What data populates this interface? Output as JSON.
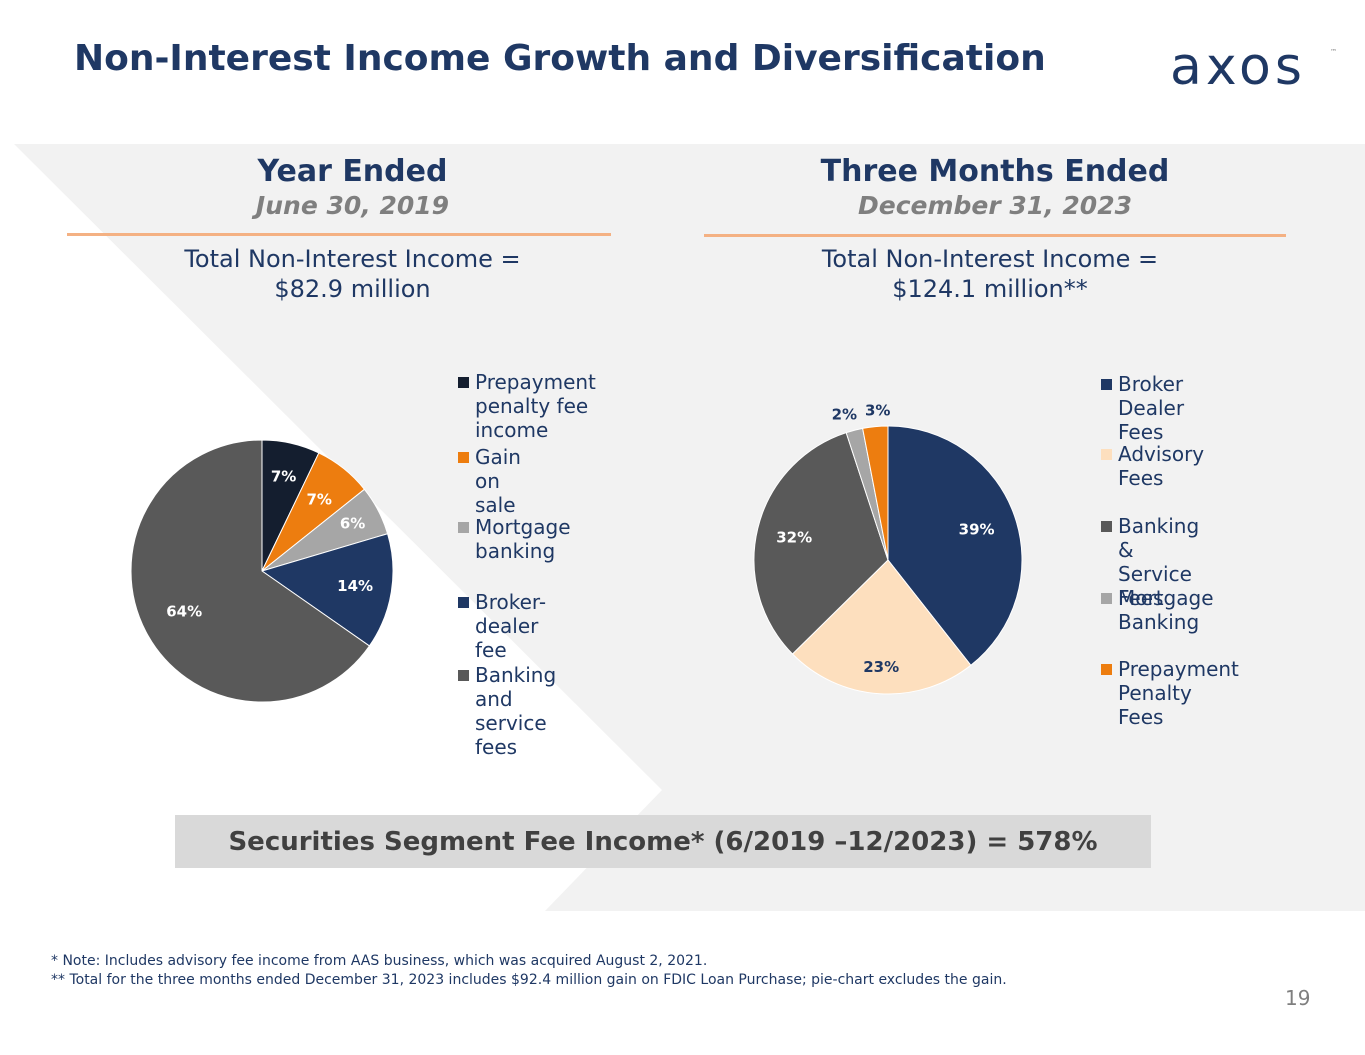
{
  "header": {
    "title": "Non-Interest Income Growth and Diversification",
    "logo_text": "axos",
    "logo_tm": "™"
  },
  "left": {
    "heading": "Year Ended",
    "subheading": "June 30, 2019",
    "total_line1": "Total Non-Interest Income =",
    "total_line2": "$82.9 million"
  },
  "right": {
    "heading": "Three Months Ended",
    "subheading": "December 31, 2023",
    "total_line1": "Total Non-Interest Income =",
    "total_line2": "$124.1 million**"
  },
  "banner": {
    "text": "Securities Segment Fee Income* (6/2019 –12/2023) = 578%"
  },
  "footnotes": {
    "note1": "* Note: Includes advisory fee income from AAS business, which was acquired August 2, 2021.",
    "note2": "** Total for the three months ended December 31, 2023 includes $92.4 million gain on FDIC Loan Purchase; pie-chart excludes the gain."
  },
  "page_number": "19",
  "colors": {
    "navy": "#1f3864",
    "orange": "#ed7d0f",
    "gray_light": "#a6a6a6",
    "gray_dark": "#595959",
    "black_navy": "#141e2f",
    "peach": "#fddfbe",
    "rule": "#f4b183"
  },
  "chart_data": [
    {
      "type": "pie",
      "title": "Year Ended June 30, 2019",
      "categories": [
        "Prepayment penalty fee income",
        "Gain on sale",
        "Mortgage banking",
        "Broker-dealer fee",
        "Banking and service fees"
      ],
      "legend_lines": [
        [
          "Prepayment",
          "penalty fee",
          "income"
        ],
        [
          "Gain on sale"
        ],
        [
          "Mortgage",
          "banking"
        ],
        [
          "Broker-dealer",
          "fee"
        ],
        [
          "Banking and",
          "service fees"
        ]
      ],
      "values": [
        7,
        7,
        6,
        14,
        64
      ],
      "labels": [
        "7%",
        "7%",
        "6%",
        "14%",
        "64%"
      ],
      "colors": [
        "#141e2f",
        "#ed7d0f",
        "#a6a6a6",
        "#1f3864",
        "#595959"
      ],
      "legend_position": "right"
    },
    {
      "type": "pie",
      "title": "Three Months Ended December 31, 2023",
      "categories": [
        "Broker Dealer Fees",
        "Advisory Fees",
        "Banking & Service Fees",
        "Mortgage Banking",
        "Prepayment Penalty Fees"
      ],
      "legend_lines": [
        [
          "Broker Dealer",
          "Fees"
        ],
        [
          "Advisory Fees"
        ],
        [
          "Banking &",
          "Service Fees"
        ],
        [
          "Mortgage",
          "Banking"
        ],
        [
          "Prepayment",
          "Penalty Fees"
        ]
      ],
      "values": [
        39,
        23,
        32,
        2,
        3
      ],
      "labels": [
        "39%",
        "23%",
        "32%",
        "2%",
        "3%"
      ],
      "colors": [
        "#1f3864",
        "#fddfbe",
        "#595959",
        "#a6a6a6",
        "#ed7d0f"
      ],
      "legend_position": "right"
    }
  ]
}
